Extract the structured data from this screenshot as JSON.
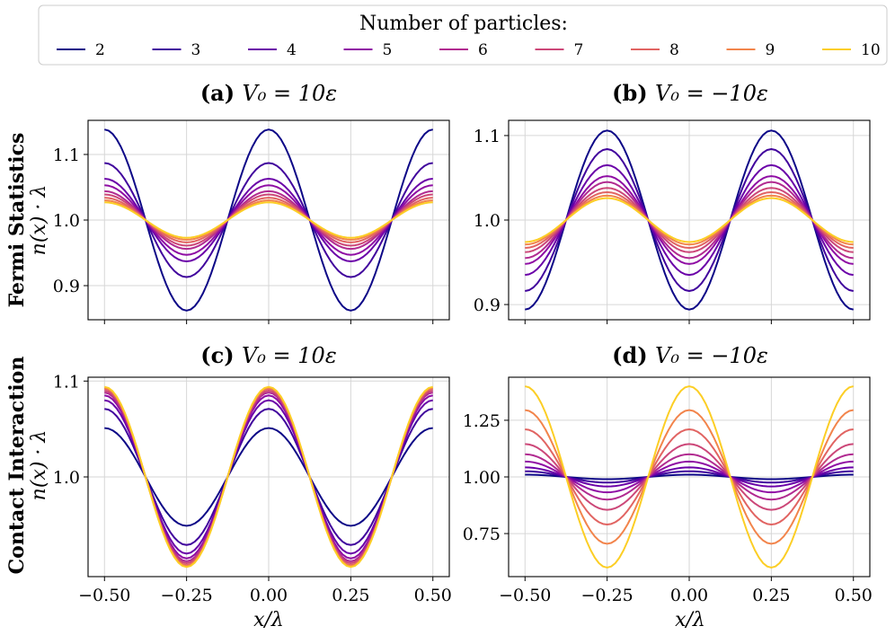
{
  "legend": {
    "title": "Number of particles:",
    "entries": [
      "2",
      "3",
      "4",
      "5",
      "6",
      "7",
      "8",
      "9",
      "10"
    ],
    "colors": [
      "#0d0887",
      "#41049d",
      "#6a00a8",
      "#8f0da4",
      "#b12a90",
      "#cc4778",
      "#e16462",
      "#f2844b",
      "#fcce25"
    ]
  },
  "row_labels": [
    {
      "bold": "Fermi Statistics",
      "math": "n(x) · λ"
    },
    {
      "bold": "Contact Interaction",
      "math": "n(x) · λ"
    }
  ],
  "x_axis_label": "x/λ",
  "chart_data": [
    {
      "type": "line",
      "panel": "a",
      "title_bold": "(a)",
      "title_math": "V₀ = 10ε",
      "xlabel": "",
      "ylabel": "n(x) · λ",
      "xlim": [
        -0.55,
        0.55
      ],
      "ylim": [
        0.848,
        1.152
      ],
      "xticks": [
        -0.5,
        -0.25,
        0,
        0.25,
        0.5
      ],
      "xtick_labels": [],
      "yticks": [
        0.9,
        1.0,
        1.1
      ],
      "ytick_labels": [
        "0.9",
        "1.0",
        "1.1"
      ],
      "grid": true,
      "form": "cos",
      "series_amplitudes": [
        {
          "name": "2",
          "amplitude": 0.138
        },
        {
          "name": "3",
          "amplitude": 0.087
        },
        {
          "name": "4",
          "amplitude": 0.063
        },
        {
          "name": "5",
          "amplitude": 0.053
        },
        {
          "name": "6",
          "amplitude": 0.044
        },
        {
          "name": "7",
          "amplitude": 0.039
        },
        {
          "name": "8",
          "amplitude": 0.034
        },
        {
          "name": "9",
          "amplitude": 0.03
        },
        {
          "name": "10",
          "amplitude": 0.027
        }
      ]
    },
    {
      "type": "line",
      "panel": "b",
      "title_bold": "(b)",
      "title_math": "V₀ = −10ε",
      "xlabel": "",
      "ylabel": "",
      "xlim": [
        -0.55,
        0.55
      ],
      "ylim": [
        0.882,
        1.118
      ],
      "xticks": [
        -0.5,
        -0.25,
        0,
        0.25,
        0.5
      ],
      "xtick_labels": [],
      "yticks": [
        0.9,
        1.0,
        1.1
      ],
      "ytick_labels": [
        "0.9",
        "1.0",
        "1.1"
      ],
      "grid": true,
      "form": "neg_cos",
      "series_amplitudes": [
        {
          "name": "2",
          "amplitude": 0.106
        },
        {
          "name": "3",
          "amplitude": 0.084
        },
        {
          "name": "4",
          "amplitude": 0.065
        },
        {
          "name": "5",
          "amplitude": 0.052
        },
        {
          "name": "6",
          "amplitude": 0.045
        },
        {
          "name": "7",
          "amplitude": 0.038
        },
        {
          "name": "8",
          "amplitude": 0.033
        },
        {
          "name": "9",
          "amplitude": 0.029
        },
        {
          "name": "10",
          "amplitude": 0.026
        }
      ]
    },
    {
      "type": "line",
      "panel": "c",
      "title_bold": "(c)",
      "title_math": "V₀ = 10ε",
      "xlabel": "x/λ",
      "ylabel": "n(x) · λ",
      "xlim": [
        -0.55,
        0.55
      ],
      "ylim": [
        0.896,
        1.104
      ],
      "xticks": [
        -0.5,
        -0.25,
        0,
        0.25,
        0.5
      ],
      "xtick_labels": [
        "−0.50",
        "−0.25",
        "0.00",
        "0.25",
        "0.50"
      ],
      "yticks": [
        1.0,
        1.1
      ],
      "ytick_labels": [
        "1.0",
        "1.1"
      ],
      "grid": true,
      "form": "cos",
      "series_amplitudes": [
        {
          "name": "2",
          "amplitude": 0.051
        },
        {
          "name": "3",
          "amplitude": 0.071
        },
        {
          "name": "4",
          "amplitude": 0.08
        },
        {
          "name": "5",
          "amplitude": 0.085
        },
        {
          "name": "6",
          "amplitude": 0.088
        },
        {
          "name": "7",
          "amplitude": 0.09
        },
        {
          "name": "8",
          "amplitude": 0.092
        },
        {
          "name": "9",
          "amplitude": 0.093
        },
        {
          "name": "10",
          "amplitude": 0.094
        }
      ]
    },
    {
      "type": "line",
      "panel": "d",
      "title_bold": "(d)",
      "title_math": "V₀ = −10ε",
      "xlabel": "x/λ",
      "ylabel": "",
      "xlim": [
        -0.55,
        0.55
      ],
      "ylim": [
        0.56,
        1.44
      ],
      "xticks": [
        -0.5,
        -0.25,
        0,
        0.25,
        0.5
      ],
      "xtick_labels": [
        "−0.50",
        "−0.25",
        "0.00",
        "0.25",
        "0.50"
      ],
      "yticks": [
        0.75,
        1.0,
        1.25
      ],
      "ytick_labels": [
        "0.75",
        "1.00",
        "1.25"
      ],
      "grid": true,
      "form": "cos",
      "series_amplitudes": [
        {
          "name": "2",
          "amplitude": 0.01
        },
        {
          "name": "3",
          "amplitude": 0.025
        },
        {
          "name": "4",
          "amplitude": 0.042
        },
        {
          "name": "5",
          "amplitude": 0.068
        },
        {
          "name": "6",
          "amplitude": 0.1
        },
        {
          "name": "7",
          "amplitude": 0.145
        },
        {
          "name": "8",
          "amplitude": 0.21
        },
        {
          "name": "9",
          "amplitude": 0.295
        },
        {
          "name": "10",
          "amplitude": 0.4
        }
      ]
    }
  ]
}
